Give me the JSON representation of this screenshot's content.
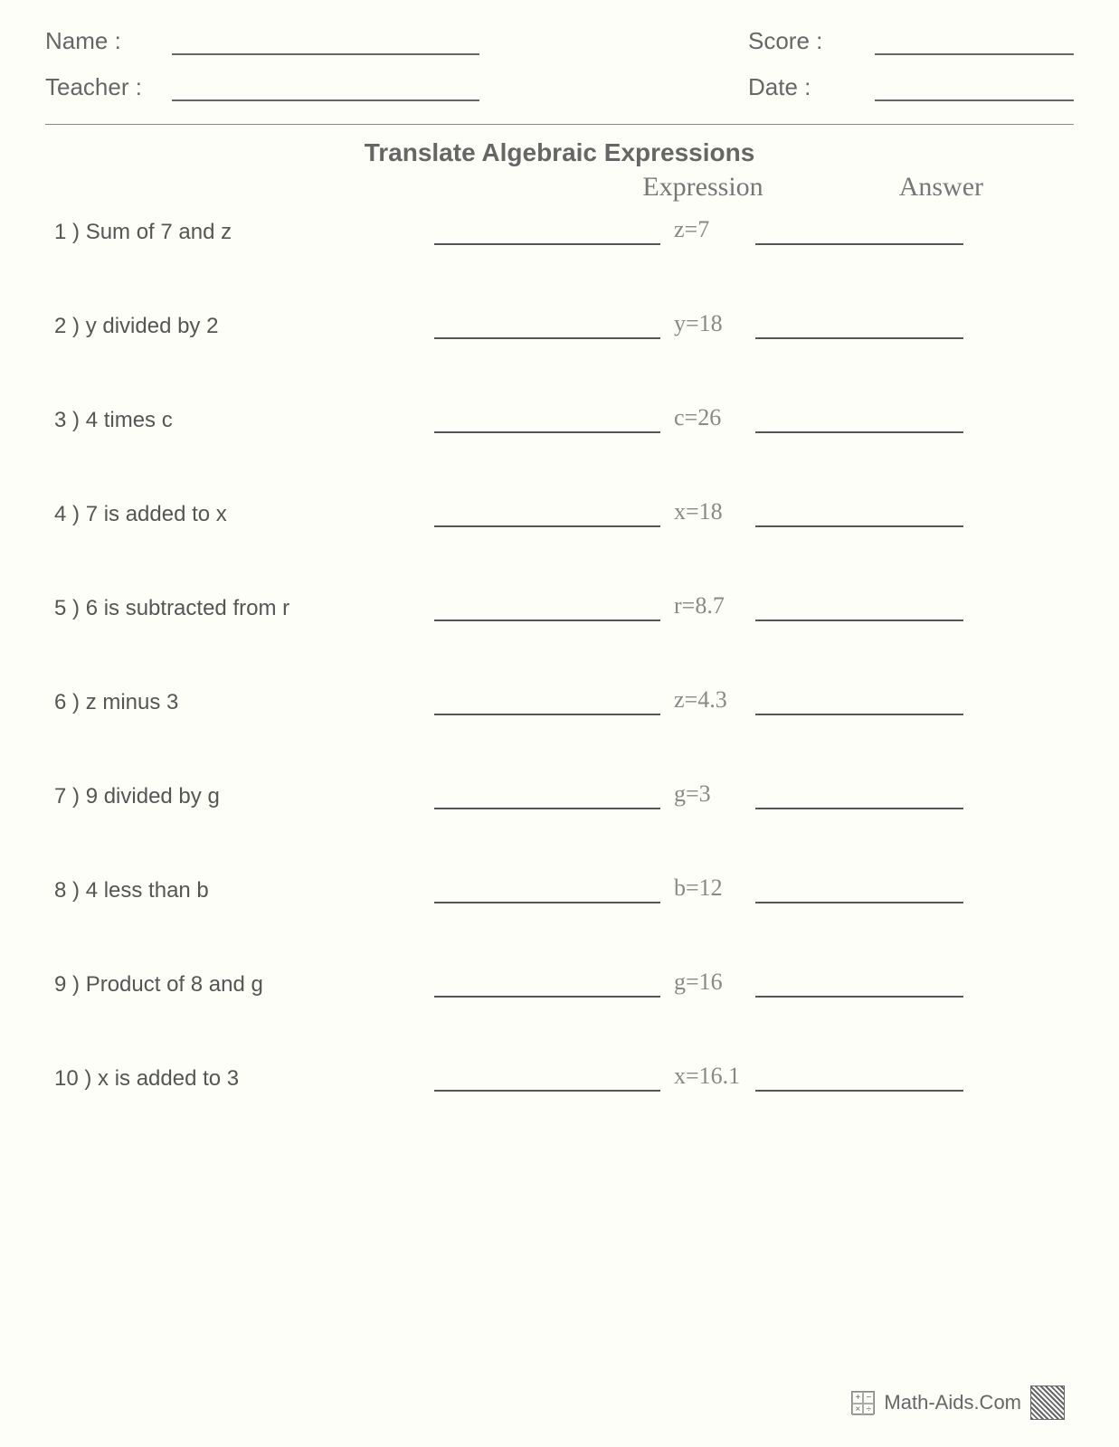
{
  "header": {
    "name_label": "Name :",
    "teacher_label": "Teacher :",
    "score_label": "Score :",
    "date_label": "Date :"
  },
  "title": "Translate Algebraic Expressions",
  "columns": {
    "expression": "Expression",
    "answer": "Answer"
  },
  "problems": [
    {
      "num": "1 )",
      "text": "Sum of 7 and z",
      "given": "z=7"
    },
    {
      "num": "2 )",
      "text": "y divided by 2",
      "given": "y=18"
    },
    {
      "num": "3 )",
      "text": "4 times c",
      "given": "c=26"
    },
    {
      "num": "4 )",
      "text": "7 is added to x",
      "given": "x=18"
    },
    {
      "num": "5 )",
      "text": "6 is subtracted from r",
      "given": "r=8.7"
    },
    {
      "num": "6 )",
      "text": "z minus 3",
      "given": "z=4.3"
    },
    {
      "num": "7 )",
      "text": "9 divided by g",
      "given": "g=3"
    },
    {
      "num": "8 )",
      "text": "4 less than b",
      "given": "b=12"
    },
    {
      "num": "9 )",
      "text": "Product of 8 and g",
      "given": "g=16"
    },
    {
      "num": "10 )",
      "text": "x is added to 3",
      "given": "x=16.1"
    }
  ],
  "footer": {
    "site": "Math-Aids.Com"
  },
  "styling": {
    "page_bg": "#fefef8",
    "text_color": "#555",
    "line_color": "#555",
    "handwriting_color": "#888",
    "title_fontsize": 28,
    "label_fontsize": 26,
    "problem_fontsize": 24,
    "handwriting_font": "Segoe Script"
  }
}
